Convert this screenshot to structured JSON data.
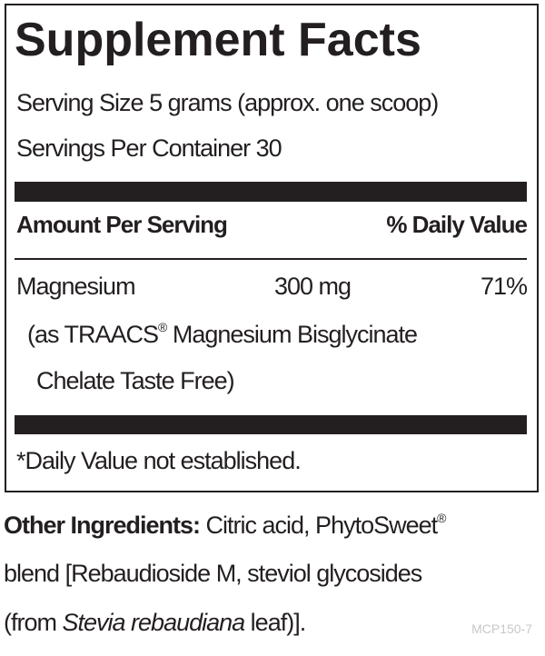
{
  "label": {
    "title": "Supplement Facts",
    "serving_size": "Serving Size 5 grams (approx. one scoop)",
    "servings_per_container": "Servings Per Container 30",
    "header": {
      "amount": "Amount Per Serving",
      "daily_value": "% Daily Value"
    },
    "rows": [
      {
        "name": "Magnesium",
        "amount": "300 mg",
        "daily_value": "71%",
        "source_line_1": "(as TRAACS",
        "source_mark": "®",
        "source_line_1_rest": " Magnesium Bisglycinate",
        "source_line_2": "Chelate Taste Free)"
      }
    ],
    "footnote": "*Daily Value not established."
  },
  "other_ingredients": {
    "heading": "Other Ingredients:",
    "line_1": " Citric acid, PhytoSweet",
    "line_1_mark": "®",
    "line_2": "blend [Rebaudioside M, steviol glycosides",
    "line_3_start": "(from ",
    "line_3_italic": "Stevia rebaudiana",
    "line_3_end": " leaf)]."
  },
  "code": "MCP150-7"
}
